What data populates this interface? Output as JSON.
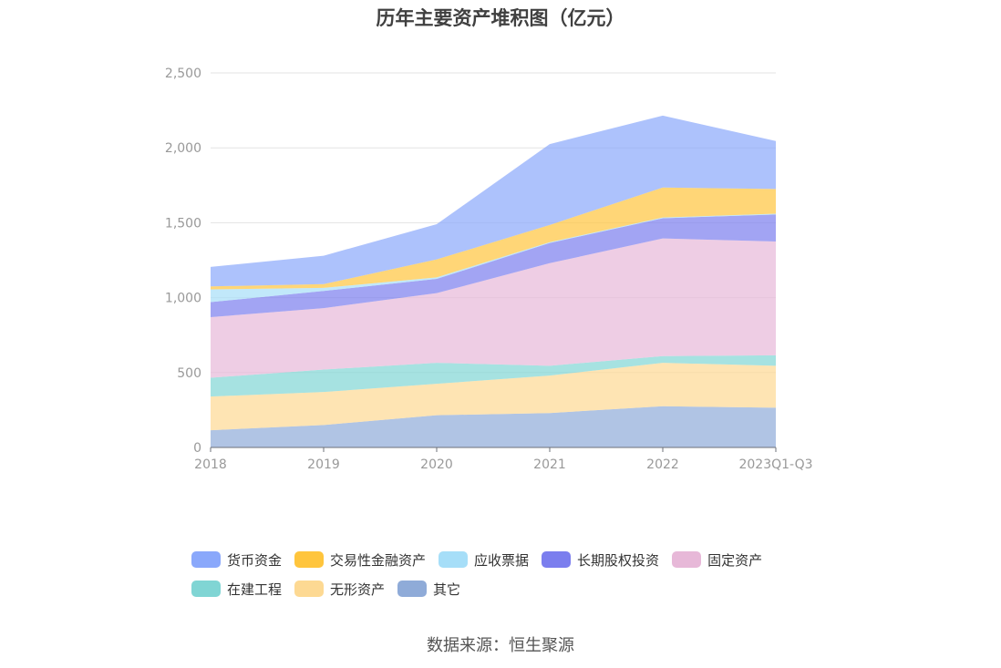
{
  "chart_data": {
    "type": "area",
    "stacked": true,
    "title": "历年主要资产堆积图（亿元）",
    "categories": [
      "2018",
      "2019",
      "2020",
      "2021",
      "2022",
      "2023Q1-Q3"
    ],
    "ylim": [
      0,
      2500
    ],
    "yticks": [
      "0",
      "500",
      "1,000",
      "1,500",
      "2,000",
      "2,500"
    ],
    "grid": true,
    "legend_position": "bottom",
    "series": [
      {
        "name": "其它",
        "color": "#8fabd8",
        "values": [
          115,
          150,
          215,
          230,
          275,
          265
        ]
      },
      {
        "name": "无形资产",
        "color": "#fdd993",
        "values": [
          225,
          220,
          210,
          250,
          290,
          280
        ]
      },
      {
        "name": "在建工程",
        "color": "#80d5d4",
        "values": [
          125,
          150,
          140,
          65,
          45,
          70
        ]
      },
      {
        "name": "固定资产",
        "color": "#e7b8d8",
        "values": [
          405,
          410,
          465,
          685,
          785,
          760
        ]
      },
      {
        "name": "长期股权投资",
        "color": "#7b7eee",
        "values": [
          100,
          115,
          95,
          135,
          135,
          180
        ]
      },
      {
        "name": "应收票据",
        "color": "#a6def8",
        "values": [
          85,
          20,
          10,
          5,
          5,
          5
        ]
      },
      {
        "name": "交易性金融资产",
        "color": "#ffc53d",
        "values": [
          20,
          25,
          120,
          115,
          200,
          165
        ]
      },
      {
        "name": "货币资金",
        "color": "#8aa8fb",
        "values": [
          130,
          190,
          235,
          540,
          480,
          320
        ]
      }
    ]
  },
  "legend": {
    "row1": [
      "货币资金",
      "交易性金融资产",
      "应收票据",
      "长期股权投资",
      "固定资产"
    ],
    "row2": [
      "在建工程",
      "无形资产",
      "其它"
    ]
  },
  "source": "数据来源：恒生聚源"
}
